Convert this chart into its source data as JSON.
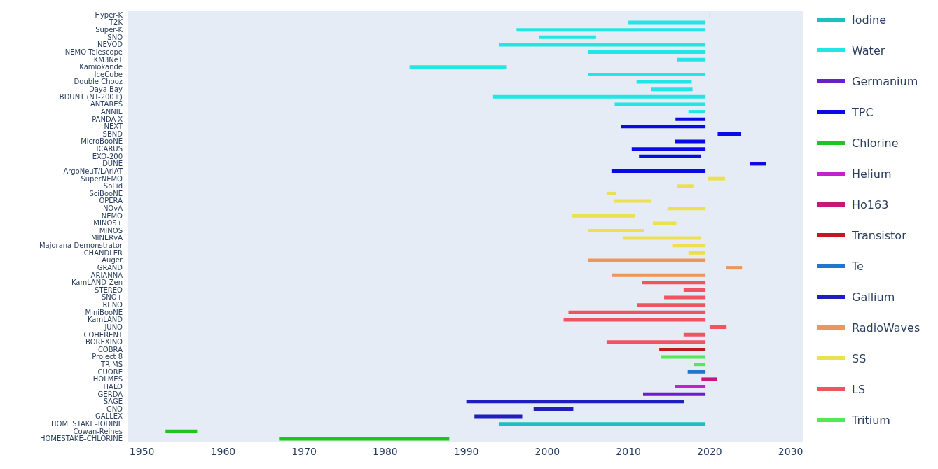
{
  "chart_data": {
    "type": "bar",
    "orientation": "horizontal",
    "legend": "right",
    "categories": [
      "Hyper-K",
      "T2K",
      "Super-K",
      "SNO",
      "NEVOD",
      "NEMO Telescope",
      "KM3NeT",
      "Kamiokande",
      "IceCube",
      "Double Chooz",
      "Daya Bay",
      "BDUNT (NT-200+)",
      "ANTARES",
      "ANNIE",
      "PANDA-X",
      "NEXT",
      "SBND",
      "MicroBooNE",
      "ICARUS",
      "EXO-200",
      "DUNE",
      "ArgoNeuT/LArIAT",
      "SuperNEMO",
      "SoLid",
      "SciBooNE",
      "OPERA",
      "NOvA",
      "NEMO",
      "MINOS+",
      "MINOS",
      "MINERvA",
      "Majorana Demonstrator",
      "CHANDLER",
      "Auger",
      "GRAND",
      "ARIANNA",
      "KamLAND-Zen",
      "STEREO",
      "SNO+",
      "RENO",
      "MiniBooNE",
      "KamLAND",
      "JUNO",
      "COHERENT",
      "BOREXINO",
      "COBRA",
      "Project 8",
      "TRIMS",
      "CUORE",
      "HOLMES",
      "HALO",
      "GERDA",
      "SAGE",
      "GNO",
      "GALLEX",
      "HOMESTAKE–IODINE",
      "Cowan-Reines",
      "HOMESTAKE–CHLORINE"
    ],
    "xlim": [
      1948.3,
      2031.5
    ],
    "xticks": [
      1950,
      1960,
      1970,
      1980,
      1990,
      2000,
      2010,
      2020,
      2030
    ],
    "series": [
      {
        "name": "Iodine",
        "color": "#1cbfc2",
        "values": [
          null,
          null,
          null,
          null,
          null,
          null,
          null,
          null,
          null,
          null,
          null,
          null,
          null,
          null,
          null,
          null,
          null,
          null,
          null,
          null,
          null,
          null,
          null,
          null,
          null,
          null,
          null,
          null,
          null,
          null,
          null,
          null,
          null,
          null,
          null,
          null,
          null,
          null,
          null,
          null,
          null,
          null,
          null,
          null,
          null,
          null,
          null,
          null,
          null,
          null,
          null,
          null,
          null,
          null,
          null,
          25.5,
          null,
          null
        ],
        "base": [
          null,
          null,
          null,
          null,
          null,
          null,
          null,
          null,
          null,
          null,
          null,
          null,
          null,
          null,
          null,
          null,
          null,
          null,
          null,
          null,
          null,
          null,
          null,
          null,
          null,
          null,
          null,
          null,
          null,
          null,
          null,
          null,
          null,
          null,
          null,
          null,
          null,
          null,
          null,
          null,
          null,
          null,
          null,
          null,
          null,
          null,
          null,
          null,
          null,
          null,
          null,
          null,
          null,
          null,
          null,
          1994,
          null,
          null
        ]
      },
      {
        "name": "Water",
        "color": "#22e6e6",
        "values": [
          0.1,
          9.5,
          23.3,
          7,
          25.5,
          14.5,
          3.5,
          12,
          14.5,
          6.8,
          5.1,
          26.2,
          11.2,
          2.1,
          null,
          null,
          null,
          null,
          null,
          null,
          null,
          null,
          null,
          null,
          null,
          null,
          null,
          null,
          null,
          null,
          null,
          null,
          null,
          null,
          null,
          null,
          null,
          null,
          null,
          null,
          null,
          null,
          null,
          null,
          null,
          null,
          null,
          null,
          null,
          null,
          null,
          null,
          null,
          null,
          null,
          null,
          null,
          null
        ],
        "base": [
          2020,
          2010,
          1996.2,
          1999,
          1994,
          2005,
          2016,
          1983,
          2005,
          2011,
          2012.8,
          1993.3,
          2008.3,
          2017.4,
          null,
          null,
          null,
          null,
          null,
          null,
          null,
          null,
          null,
          null,
          null,
          null,
          null,
          null,
          null,
          null,
          null,
          null,
          null,
          null,
          null,
          null,
          null,
          null,
          null,
          null,
          null,
          null,
          null,
          null,
          null,
          null,
          null,
          null,
          null,
          null,
          null,
          null,
          null,
          null,
          null,
          null,
          null,
          null
        ]
      },
      {
        "name": "Germanium",
        "color": "#6a20c8",
        "values": [
          null,
          null,
          null,
          null,
          null,
          null,
          null,
          null,
          null,
          null,
          null,
          null,
          null,
          null,
          null,
          null,
          null,
          null,
          null,
          null,
          null,
          null,
          null,
          null,
          null,
          null,
          null,
          null,
          null,
          null,
          null,
          null,
          null,
          null,
          null,
          null,
          null,
          null,
          null,
          null,
          null,
          null,
          null,
          null,
          null,
          null,
          null,
          null,
          null,
          null,
          null,
          7.7,
          null,
          null,
          null,
          null,
          null,
          null
        ],
        "base": [
          null,
          null,
          null,
          null,
          null,
          null,
          null,
          null,
          null,
          null,
          null,
          null,
          null,
          null,
          null,
          null,
          null,
          null,
          null,
          null,
          null,
          null,
          null,
          null,
          null,
          null,
          null,
          null,
          null,
          null,
          null,
          null,
          null,
          null,
          null,
          null,
          null,
          null,
          null,
          null,
          null,
          null,
          null,
          null,
          null,
          null,
          null,
          null,
          null,
          null,
          null,
          2011.8,
          null,
          null,
          null,
          null,
          null,
          null
        ]
      },
      {
        "name": "TPC",
        "color": "#0a0ae8",
        "values": [
          null,
          null,
          null,
          null,
          null,
          null,
          null,
          null,
          null,
          null,
          null,
          null,
          null,
          null,
          3.7,
          10.4,
          2.9,
          3.8,
          9.1,
          7.6,
          2,
          11.6,
          null,
          null,
          null,
          null,
          null,
          null,
          null,
          null,
          null,
          null,
          null,
          null,
          null,
          null,
          null,
          null,
          null,
          null,
          null,
          null,
          null,
          null,
          null,
          null,
          null,
          null,
          null,
          null,
          null,
          null,
          null,
          null,
          null,
          null,
          null,
          null
        ],
        "base": [
          null,
          null,
          null,
          null,
          null,
          null,
          null,
          null,
          null,
          null,
          null,
          null,
          null,
          null,
          2015.8,
          2009.1,
          2021,
          2015.7,
          2010.4,
          2011.3,
          2025,
          2007.9,
          null,
          null,
          null,
          null,
          null,
          null,
          null,
          null,
          null,
          null,
          null,
          null,
          null,
          null,
          null,
          null,
          null,
          null,
          null,
          null,
          null,
          null,
          null,
          null,
          null,
          null,
          null,
          null,
          null,
          null,
          null,
          null,
          null,
          null,
          null,
          null
        ]
      },
      {
        "name": "Chlorine",
        "color": "#1fc41f",
        "values": [
          null,
          null,
          null,
          null,
          null,
          null,
          null,
          null,
          null,
          null,
          null,
          null,
          null,
          null,
          null,
          null,
          null,
          null,
          null,
          null,
          null,
          null,
          null,
          null,
          null,
          null,
          null,
          null,
          null,
          null,
          null,
          null,
          null,
          null,
          null,
          null,
          null,
          null,
          null,
          null,
          null,
          null,
          null,
          null,
          null,
          null,
          null,
          null,
          null,
          null,
          null,
          null,
          null,
          null,
          null,
          null,
          3.9,
          21
        ],
        "base": [
          null,
          null,
          null,
          null,
          null,
          null,
          null,
          null,
          null,
          null,
          null,
          null,
          null,
          null,
          null,
          null,
          null,
          null,
          null,
          null,
          null,
          null,
          null,
          null,
          null,
          null,
          null,
          null,
          null,
          null,
          null,
          null,
          null,
          null,
          null,
          null,
          null,
          null,
          null,
          null,
          null,
          null,
          null,
          null,
          null,
          null,
          null,
          null,
          null,
          null,
          null,
          null,
          null,
          null,
          null,
          null,
          1952.9,
          1966.9
        ]
      },
      {
        "name": "Helium",
        "color": "#c420cc",
        "values": [
          null,
          null,
          null,
          null,
          null,
          null,
          null,
          null,
          null,
          null,
          null,
          null,
          null,
          null,
          null,
          null,
          null,
          null,
          null,
          null,
          null,
          null,
          null,
          null,
          null,
          null,
          null,
          null,
          null,
          null,
          null,
          null,
          null,
          null,
          null,
          null,
          null,
          null,
          null,
          null,
          null,
          null,
          null,
          null,
          null,
          null,
          null,
          null,
          null,
          null,
          3.8,
          null,
          null,
          null,
          null,
          null,
          null,
          null
        ],
        "base": [
          null,
          null,
          null,
          null,
          null,
          null,
          null,
          null,
          null,
          null,
          null,
          null,
          null,
          null,
          null,
          null,
          null,
          null,
          null,
          null,
          null,
          null,
          null,
          null,
          null,
          null,
          null,
          null,
          null,
          null,
          null,
          null,
          null,
          null,
          null,
          null,
          null,
          null,
          null,
          null,
          null,
          null,
          null,
          null,
          null,
          null,
          null,
          null,
          null,
          null,
          2015.7,
          null,
          null,
          null,
          null,
          null,
          null,
          null
        ]
      },
      {
        "name": "Ho163",
        "color": "#c4187a",
        "values": [
          null,
          null,
          null,
          null,
          null,
          null,
          null,
          null,
          null,
          null,
          null,
          null,
          null,
          null,
          null,
          null,
          null,
          null,
          null,
          null,
          null,
          null,
          null,
          null,
          null,
          null,
          null,
          null,
          null,
          null,
          null,
          null,
          null,
          null,
          null,
          null,
          null,
          null,
          null,
          null,
          null,
          null,
          null,
          null,
          null,
          null,
          null,
          null,
          null,
          1.9,
          null,
          null,
          null,
          null,
          null,
          null,
          null,
          null
        ],
        "base": [
          null,
          null,
          null,
          null,
          null,
          null,
          null,
          null,
          null,
          null,
          null,
          null,
          null,
          null,
          null,
          null,
          null,
          null,
          null,
          null,
          null,
          null,
          null,
          null,
          null,
          null,
          null,
          null,
          null,
          null,
          null,
          null,
          null,
          null,
          null,
          null,
          null,
          null,
          null,
          null,
          null,
          null,
          null,
          null,
          null,
          null,
          null,
          null,
          null,
          2019,
          null,
          null,
          null,
          null,
          null,
          null,
          null,
          null
        ]
      },
      {
        "name": "Transistor",
        "color": "#c4181f",
        "values": [
          null,
          null,
          null,
          null,
          null,
          null,
          null,
          null,
          null,
          null,
          null,
          null,
          null,
          null,
          null,
          null,
          null,
          null,
          null,
          null,
          null,
          null,
          null,
          null,
          null,
          null,
          null,
          null,
          null,
          null,
          null,
          null,
          null,
          null,
          null,
          null,
          null,
          null,
          null,
          null,
          null,
          null,
          null,
          null,
          null,
          5.7,
          null,
          null,
          null,
          null,
          null,
          null,
          null,
          null,
          null,
          null,
          null,
          null
        ],
        "base": [
          null,
          null,
          null,
          null,
          null,
          null,
          null,
          null,
          null,
          null,
          null,
          null,
          null,
          null,
          null,
          null,
          null,
          null,
          null,
          null,
          null,
          null,
          null,
          null,
          null,
          null,
          null,
          null,
          null,
          null,
          null,
          null,
          null,
          null,
          null,
          null,
          null,
          null,
          null,
          null,
          null,
          null,
          null,
          null,
          null,
          2013.8,
          null,
          null,
          null,
          null,
          null,
          null,
          null,
          null,
          null,
          null,
          null,
          null
        ]
      },
      {
        "name": "Te",
        "color": "#1f78d0",
        "values": [
          null,
          null,
          null,
          null,
          null,
          null,
          null,
          null,
          null,
          null,
          null,
          null,
          null,
          null,
          null,
          null,
          null,
          null,
          null,
          null,
          null,
          null,
          null,
          null,
          null,
          null,
          null,
          null,
          null,
          null,
          null,
          null,
          null,
          null,
          null,
          null,
          null,
          null,
          null,
          null,
          null,
          null,
          null,
          null,
          null,
          null,
          null,
          null,
          2.2,
          null,
          null,
          null,
          null,
          null,
          null,
          null,
          null,
          null
        ],
        "base": [
          null,
          null,
          null,
          null,
          null,
          null,
          null,
          null,
          null,
          null,
          null,
          null,
          null,
          null,
          null,
          null,
          null,
          null,
          null,
          null,
          null,
          null,
          null,
          null,
          null,
          null,
          null,
          null,
          null,
          null,
          null,
          null,
          null,
          null,
          null,
          null,
          null,
          null,
          null,
          null,
          null,
          null,
          null,
          null,
          null,
          null,
          null,
          null,
          2017.3,
          null,
          null,
          null,
          null,
          null,
          null,
          null,
          null,
          null
        ]
      },
      {
        "name": "Gallium",
        "color": "#1f1fbf",
        "values": [
          null,
          null,
          null,
          null,
          null,
          null,
          null,
          null,
          null,
          null,
          null,
          null,
          null,
          null,
          null,
          null,
          null,
          null,
          null,
          null,
          null,
          null,
          null,
          null,
          null,
          null,
          null,
          null,
          null,
          null,
          null,
          null,
          null,
          null,
          null,
          null,
          null,
          null,
          null,
          null,
          null,
          null,
          null,
          null,
          null,
          null,
          null,
          null,
          null,
          null,
          null,
          null,
          26.9,
          4.9,
          5.9,
          null,
          null,
          null
        ],
        "base": [
          null,
          null,
          null,
          null,
          null,
          null,
          null,
          null,
          null,
          null,
          null,
          null,
          null,
          null,
          null,
          null,
          null,
          null,
          null,
          null,
          null,
          null,
          null,
          null,
          null,
          null,
          null,
          null,
          null,
          null,
          null,
          null,
          null,
          null,
          null,
          null,
          null,
          null,
          null,
          null,
          null,
          null,
          null,
          null,
          null,
          null,
          null,
          null,
          null,
          null,
          null,
          null,
          1990,
          1998.3,
          1991,
          null,
          null,
          null
        ]
      },
      {
        "name": "RadioWaves",
        "color": "#f09555",
        "values": [
          null,
          null,
          null,
          null,
          null,
          null,
          null,
          null,
          null,
          null,
          null,
          null,
          null,
          null,
          null,
          null,
          null,
          null,
          null,
          null,
          null,
          null,
          null,
          null,
          null,
          null,
          null,
          null,
          null,
          null,
          null,
          null,
          null,
          14.5,
          2,
          11.5,
          null,
          null,
          null,
          null,
          null,
          null,
          null,
          null,
          null,
          null,
          null,
          null,
          null,
          null,
          null,
          null,
          null,
          null,
          null,
          null,
          null,
          null
        ],
        "base": [
          null,
          null,
          null,
          null,
          null,
          null,
          null,
          null,
          null,
          null,
          null,
          null,
          null,
          null,
          null,
          null,
          null,
          null,
          null,
          null,
          null,
          null,
          null,
          null,
          null,
          null,
          null,
          null,
          null,
          null,
          null,
          null,
          null,
          2005,
          2022,
          2008,
          null,
          null,
          null,
          null,
          null,
          null,
          null,
          null,
          null,
          null,
          null,
          null,
          null,
          null,
          null,
          null,
          null,
          null,
          null,
          null,
          null,
          null
        ]
      },
      {
        "name": "SS",
        "color": "#ebe150",
        "values": [
          null,
          null,
          null,
          null,
          null,
          null,
          null,
          null,
          null,
          null,
          null,
          null,
          null,
          null,
          null,
          null,
          null,
          null,
          null,
          null,
          null,
          null,
          2.1,
          2,
          1.2,
          4.6,
          4.7,
          7.8,
          2.9,
          6.9,
          9.6,
          4.1,
          2.1,
          null,
          null,
          null,
          null,
          null,
          null,
          null,
          null,
          null,
          null,
          null,
          null,
          null,
          null,
          null,
          null,
          null,
          null,
          null,
          null,
          null,
          null,
          null,
          null,
          null
        ],
        "base": [
          null,
          null,
          null,
          null,
          null,
          null,
          null,
          null,
          null,
          null,
          null,
          null,
          null,
          null,
          null,
          null,
          null,
          null,
          null,
          null,
          null,
          null,
          2019.8,
          2016,
          2007.3,
          2008.2,
          2014.8,
          2003,
          2013,
          2005,
          2009.3,
          2015.4,
          2017.4,
          null,
          null,
          null,
          null,
          null,
          null,
          null,
          null,
          null,
          null,
          null,
          null,
          null,
          null,
          null,
          null,
          null,
          null,
          null,
          null,
          null,
          null,
          null,
          null,
          null
        ]
      },
      {
        "name": "LS",
        "color": "#ef5560",
        "values": [
          null,
          null,
          null,
          null,
          null,
          null,
          null,
          null,
          null,
          null,
          null,
          null,
          null,
          null,
          null,
          null,
          null,
          null,
          null,
          null,
          null,
          null,
          null,
          null,
          null,
          null,
          null,
          null,
          null,
          null,
          null,
          null,
          null,
          null,
          null,
          null,
          7.8,
          2.7,
          5.1,
          8.4,
          16.9,
          17.5,
          2.1,
          2.7,
          12.2,
          null,
          null,
          null,
          null,
          null,
          null,
          null,
          null,
          null,
          null,
          null,
          null,
          null
        ],
        "base": [
          null,
          null,
          null,
          null,
          null,
          null,
          null,
          null,
          null,
          null,
          null,
          null,
          null,
          null,
          null,
          null,
          null,
          null,
          null,
          null,
          null,
          null,
          null,
          null,
          null,
          null,
          null,
          null,
          null,
          null,
          null,
          null,
          null,
          null,
          null,
          null,
          2011.7,
          2016.8,
          2014.4,
          2011.1,
          2002.6,
          2002,
          2020,
          2016.8,
          2007.3,
          null,
          null,
          null,
          null,
          null,
          null,
          null,
          null,
          null,
          null,
          null,
          null,
          null
        ]
      },
      {
        "name": "Tritium",
        "color": "#55e855",
        "values": [
          null,
          null,
          null,
          null,
          null,
          null,
          null,
          null,
          null,
          null,
          null,
          null,
          null,
          null,
          null,
          null,
          null,
          null,
          null,
          null,
          null,
          null,
          null,
          null,
          null,
          null,
          null,
          null,
          null,
          null,
          null,
          null,
          null,
          null,
          null,
          null,
          null,
          null,
          null,
          null,
          null,
          null,
          null,
          null,
          null,
          null,
          5.5,
          1.4,
          null,
          null,
          null,
          null,
          null,
          null,
          null,
          null,
          null,
          null
        ],
        "base": [
          null,
          null,
          null,
          null,
          null,
          null,
          null,
          null,
          null,
          null,
          null,
          null,
          null,
          null,
          null,
          null,
          null,
          null,
          null,
          null,
          null,
          null,
          null,
          null,
          null,
          null,
          null,
          null,
          null,
          null,
          null,
          null,
          null,
          null,
          null,
          null,
          null,
          null,
          null,
          null,
          null,
          null,
          null,
          null,
          null,
          null,
          2014,
          2018.1,
          null,
          null,
          null,
          null,
          null,
          null,
          null,
          null,
          null,
          null
        ]
      }
    ]
  }
}
